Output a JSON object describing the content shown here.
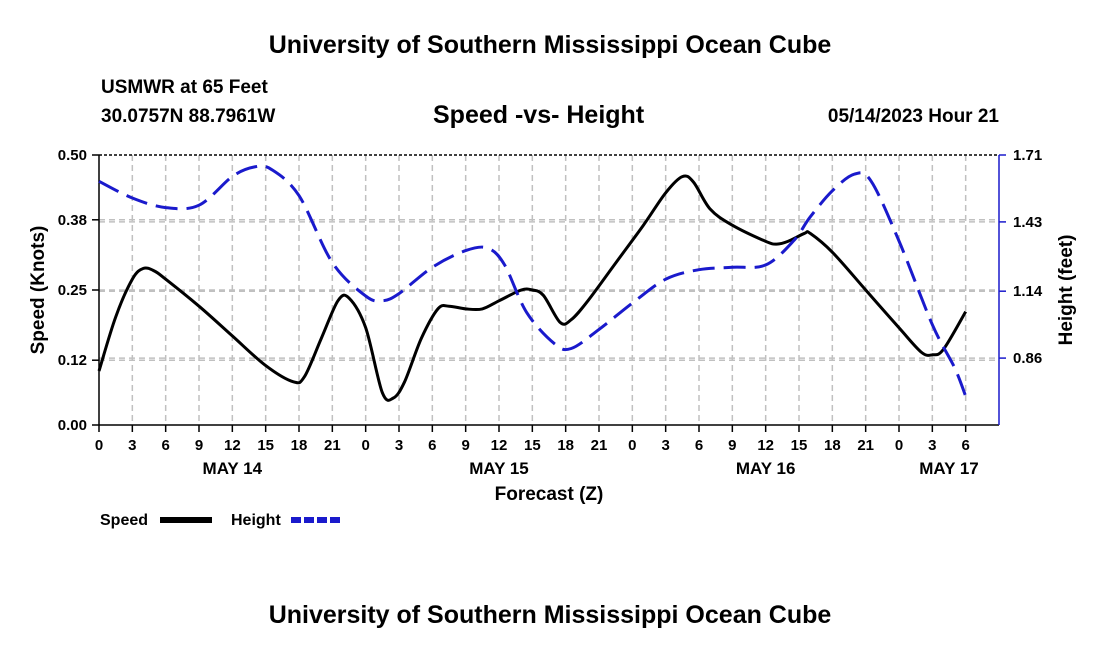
{
  "header": {
    "title": "University of Southern Mississippi Ocean Cube",
    "station": "USMWR at 65 Feet",
    "coords": "30.0757N  88.7961W",
    "subtitle": "Speed -vs- Height",
    "datetime": "05/14/2023 Hour 21"
  },
  "footer": {
    "title": "University of Southern Mississippi Ocean Cube"
  },
  "colors": {
    "speed": "#000000",
    "height": "#1a1acc",
    "grid": "#c0c0c0"
  },
  "chart_data": {
    "type": "line",
    "title": "Speed -vs- Height",
    "xlabel": "Forecast (Z)",
    "ylabel_left": "Speed (Knots)",
    "ylabel_right": "Height (feet)",
    "x_hours_range": [
      0,
      81
    ],
    "x_ticks": [
      {
        "h": 0,
        "label": "0"
      },
      {
        "h": 3,
        "label": "3"
      },
      {
        "h": 6,
        "label": "6"
      },
      {
        "h": 9,
        "label": "9"
      },
      {
        "h": 12,
        "label": "12"
      },
      {
        "h": 15,
        "label": "15"
      },
      {
        "h": 18,
        "label": "18"
      },
      {
        "h": 21,
        "label": "21"
      },
      {
        "h": 24,
        "label": "0"
      },
      {
        "h": 27,
        "label": "3"
      },
      {
        "h": 30,
        "label": "6"
      },
      {
        "h": 33,
        "label": "9"
      },
      {
        "h": 36,
        "label": "12"
      },
      {
        "h": 39,
        "label": "15"
      },
      {
        "h": 42,
        "label": "18"
      },
      {
        "h": 45,
        "label": "21"
      },
      {
        "h": 48,
        "label": "0"
      },
      {
        "h": 51,
        "label": "3"
      },
      {
        "h": 54,
        "label": "6"
      },
      {
        "h": 57,
        "label": "9"
      },
      {
        "h": 60,
        "label": "12"
      },
      {
        "h": 63,
        "label": "15"
      },
      {
        "h": 66,
        "label": "18"
      },
      {
        "h": 69,
        "label": "21"
      },
      {
        "h": 72,
        "label": "0"
      },
      {
        "h": 75,
        "label": "3"
      },
      {
        "h": 78,
        "label": "6"
      }
    ],
    "day_labels": [
      {
        "h": 12,
        "label": "MAY 14"
      },
      {
        "h": 36,
        "label": "MAY 15"
      },
      {
        "h": 60,
        "label": "MAY 16"
      },
      {
        "h": 76.5,
        "label": "MAY 17"
      }
    ],
    "y_left": {
      "min": 0,
      "max": 0.5,
      "ticks": [
        "0.00",
        "0.12",
        "0.25",
        "0.38",
        "0.50"
      ]
    },
    "y_right": {
      "min": 0.58,
      "max": 1.71,
      "ticks": [
        "0.86",
        "1.14",
        "1.43",
        "1.71"
      ]
    },
    "series": [
      {
        "name": "Speed",
        "axis": "left",
        "points": [
          [
            0,
            0.1
          ],
          [
            1.5,
            0.2
          ],
          [
            3,
            0.27
          ],
          [
            4,
            0.29
          ],
          [
            5,
            0.285
          ],
          [
            6,
            0.27
          ],
          [
            9,
            0.22
          ],
          [
            12,
            0.165
          ],
          [
            15,
            0.11
          ],
          [
            17.5,
            0.08
          ],
          [
            18.5,
            0.09
          ],
          [
            20,
            0.16
          ],
          [
            21.5,
            0.23
          ],
          [
            22.5,
            0.235
          ],
          [
            24,
            0.18
          ],
          [
            25.5,
            0.06
          ],
          [
            26.5,
            0.05
          ],
          [
            27.5,
            0.08
          ],
          [
            29,
            0.16
          ],
          [
            30.5,
            0.215
          ],
          [
            31.5,
            0.22
          ],
          [
            33,
            0.215
          ],
          [
            34.5,
            0.215
          ],
          [
            36,
            0.23
          ],
          [
            38,
            0.25
          ],
          [
            39,
            0.25
          ],
          [
            40,
            0.24
          ],
          [
            41.5,
            0.19
          ],
          [
            42.5,
            0.195
          ],
          [
            44,
            0.23
          ],
          [
            46.5,
            0.3
          ],
          [
            49,
            0.37
          ],
          [
            51,
            0.43
          ],
          [
            52.5,
            0.46
          ],
          [
            53.5,
            0.45
          ],
          [
            55,
            0.4
          ],
          [
            57,
            0.37
          ],
          [
            60,
            0.34
          ],
          [
            61,
            0.335
          ],
          [
            62,
            0.34
          ],
          [
            63.5,
            0.355
          ],
          [
            64,
            0.355
          ],
          [
            66,
            0.32
          ],
          [
            69,
            0.25
          ],
          [
            72,
            0.18
          ],
          [
            74,
            0.135
          ],
          [
            75,
            0.13
          ],
          [
            76,
            0.14
          ],
          [
            78,
            0.21
          ]
        ]
      },
      {
        "name": "Height",
        "axis": "right",
        "points": [
          [
            0,
            1.6
          ],
          [
            3,
            1.53
          ],
          [
            6,
            1.49
          ],
          [
            9,
            1.5
          ],
          [
            12,
            1.62
          ],
          [
            14,
            1.66
          ],
          [
            15.5,
            1.65
          ],
          [
            18,
            1.54
          ],
          [
            21,
            1.26
          ],
          [
            24,
            1.12
          ],
          [
            25.5,
            1.1
          ],
          [
            27,
            1.13
          ],
          [
            30,
            1.24
          ],
          [
            33,
            1.31
          ],
          [
            35,
            1.32
          ],
          [
            36.5,
            1.25
          ],
          [
            38.5,
            1.05
          ],
          [
            41,
            0.92
          ],
          [
            42.5,
            0.9
          ],
          [
            45,
            0.98
          ],
          [
            48,
            1.09
          ],
          [
            51,
            1.19
          ],
          [
            54,
            1.23
          ],
          [
            57,
            1.24
          ],
          [
            60,
            1.25
          ],
          [
            62.5,
            1.35
          ],
          [
            64,
            1.45
          ],
          [
            66,
            1.56
          ],
          [
            68,
            1.63
          ],
          [
            69.5,
            1.6
          ],
          [
            72,
            1.35
          ],
          [
            75,
            1.0
          ],
          [
            77,
            0.82
          ],
          [
            78,
            0.7
          ]
        ]
      }
    ],
    "legend": [
      {
        "label": "Speed",
        "color": "#000000",
        "dash": false
      },
      {
        "label": "Height",
        "color": "#1a1acc",
        "dash": true
      }
    ]
  }
}
